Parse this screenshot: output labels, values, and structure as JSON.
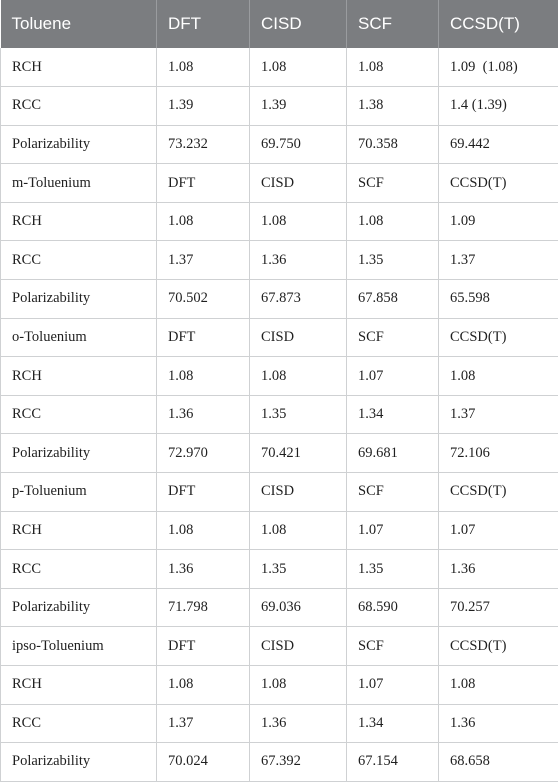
{
  "header": [
    "Toluene",
    "DFT",
    "CISD",
    "SCF",
    "CCSD(T)"
  ],
  "rows": [
    [
      "RCH",
      "1.08",
      "1.08",
      "1.08",
      "1.09 (1.08)"
    ],
    [
      "RCC",
      "1.39",
      "1.39",
      "1.38",
      "1.4 (1.39)"
    ],
    [
      "Polarizability",
      "73.232",
      "69.750",
      "70.358",
      "69.442"
    ],
    [
      "m-Toluenium",
      "DFT",
      "CISD",
      "SCF",
      "CCSD(T)"
    ],
    [
      "RCH",
      "1.08",
      "1.08",
      "1.08",
      "1.09"
    ],
    [
      "RCC",
      "1.37",
      "1.36",
      "1.35",
      "1.37"
    ],
    [
      "Polarizability",
      "70.502",
      "67.873",
      "67.858",
      "65.598"
    ],
    [
      "o-Toluenium",
      "DFT",
      "CISD",
      "SCF",
      "CCSD(T)"
    ],
    [
      "RCH",
      "1.08",
      "1.08",
      "1.07",
      "1.08"
    ],
    [
      "RCC",
      "1.36",
      "1.35",
      "1.34",
      "1.37"
    ],
    [
      "Polarizability",
      "72.970",
      "70.421",
      "69.681",
      "72.106"
    ],
    [
      "p-Toluenium",
      "DFT",
      "CISD",
      "SCF",
      "CCSD(T)"
    ],
    [
      "RCH",
      "1.08",
      "1.08",
      "1.07",
      "1.07"
    ],
    [
      "RCC",
      "1.36",
      "1.35",
      "1.35",
      "1.36"
    ],
    [
      "Polarizability",
      "71.798",
      "69.036",
      "68.590",
      "70.257"
    ],
    [
      "ipso-Toluenium",
      "DFT",
      "CISD",
      "SCF",
      "CCSD(T)"
    ],
    [
      "RCH",
      "1.08",
      "1.08",
      "1.07",
      "1.08"
    ],
    [
      "RCC",
      "1.37",
      "1.36",
      "1.34",
      "1.36"
    ],
    [
      "Polarizability",
      "70.024",
      "67.392",
      "67.154",
      "68.658"
    ]
  ],
  "colors": {
    "header_bg": "#7b7d80",
    "header_text": "#ffffff",
    "grid": "#cfd1d3",
    "cell_text": "#1f1f1f"
  }
}
